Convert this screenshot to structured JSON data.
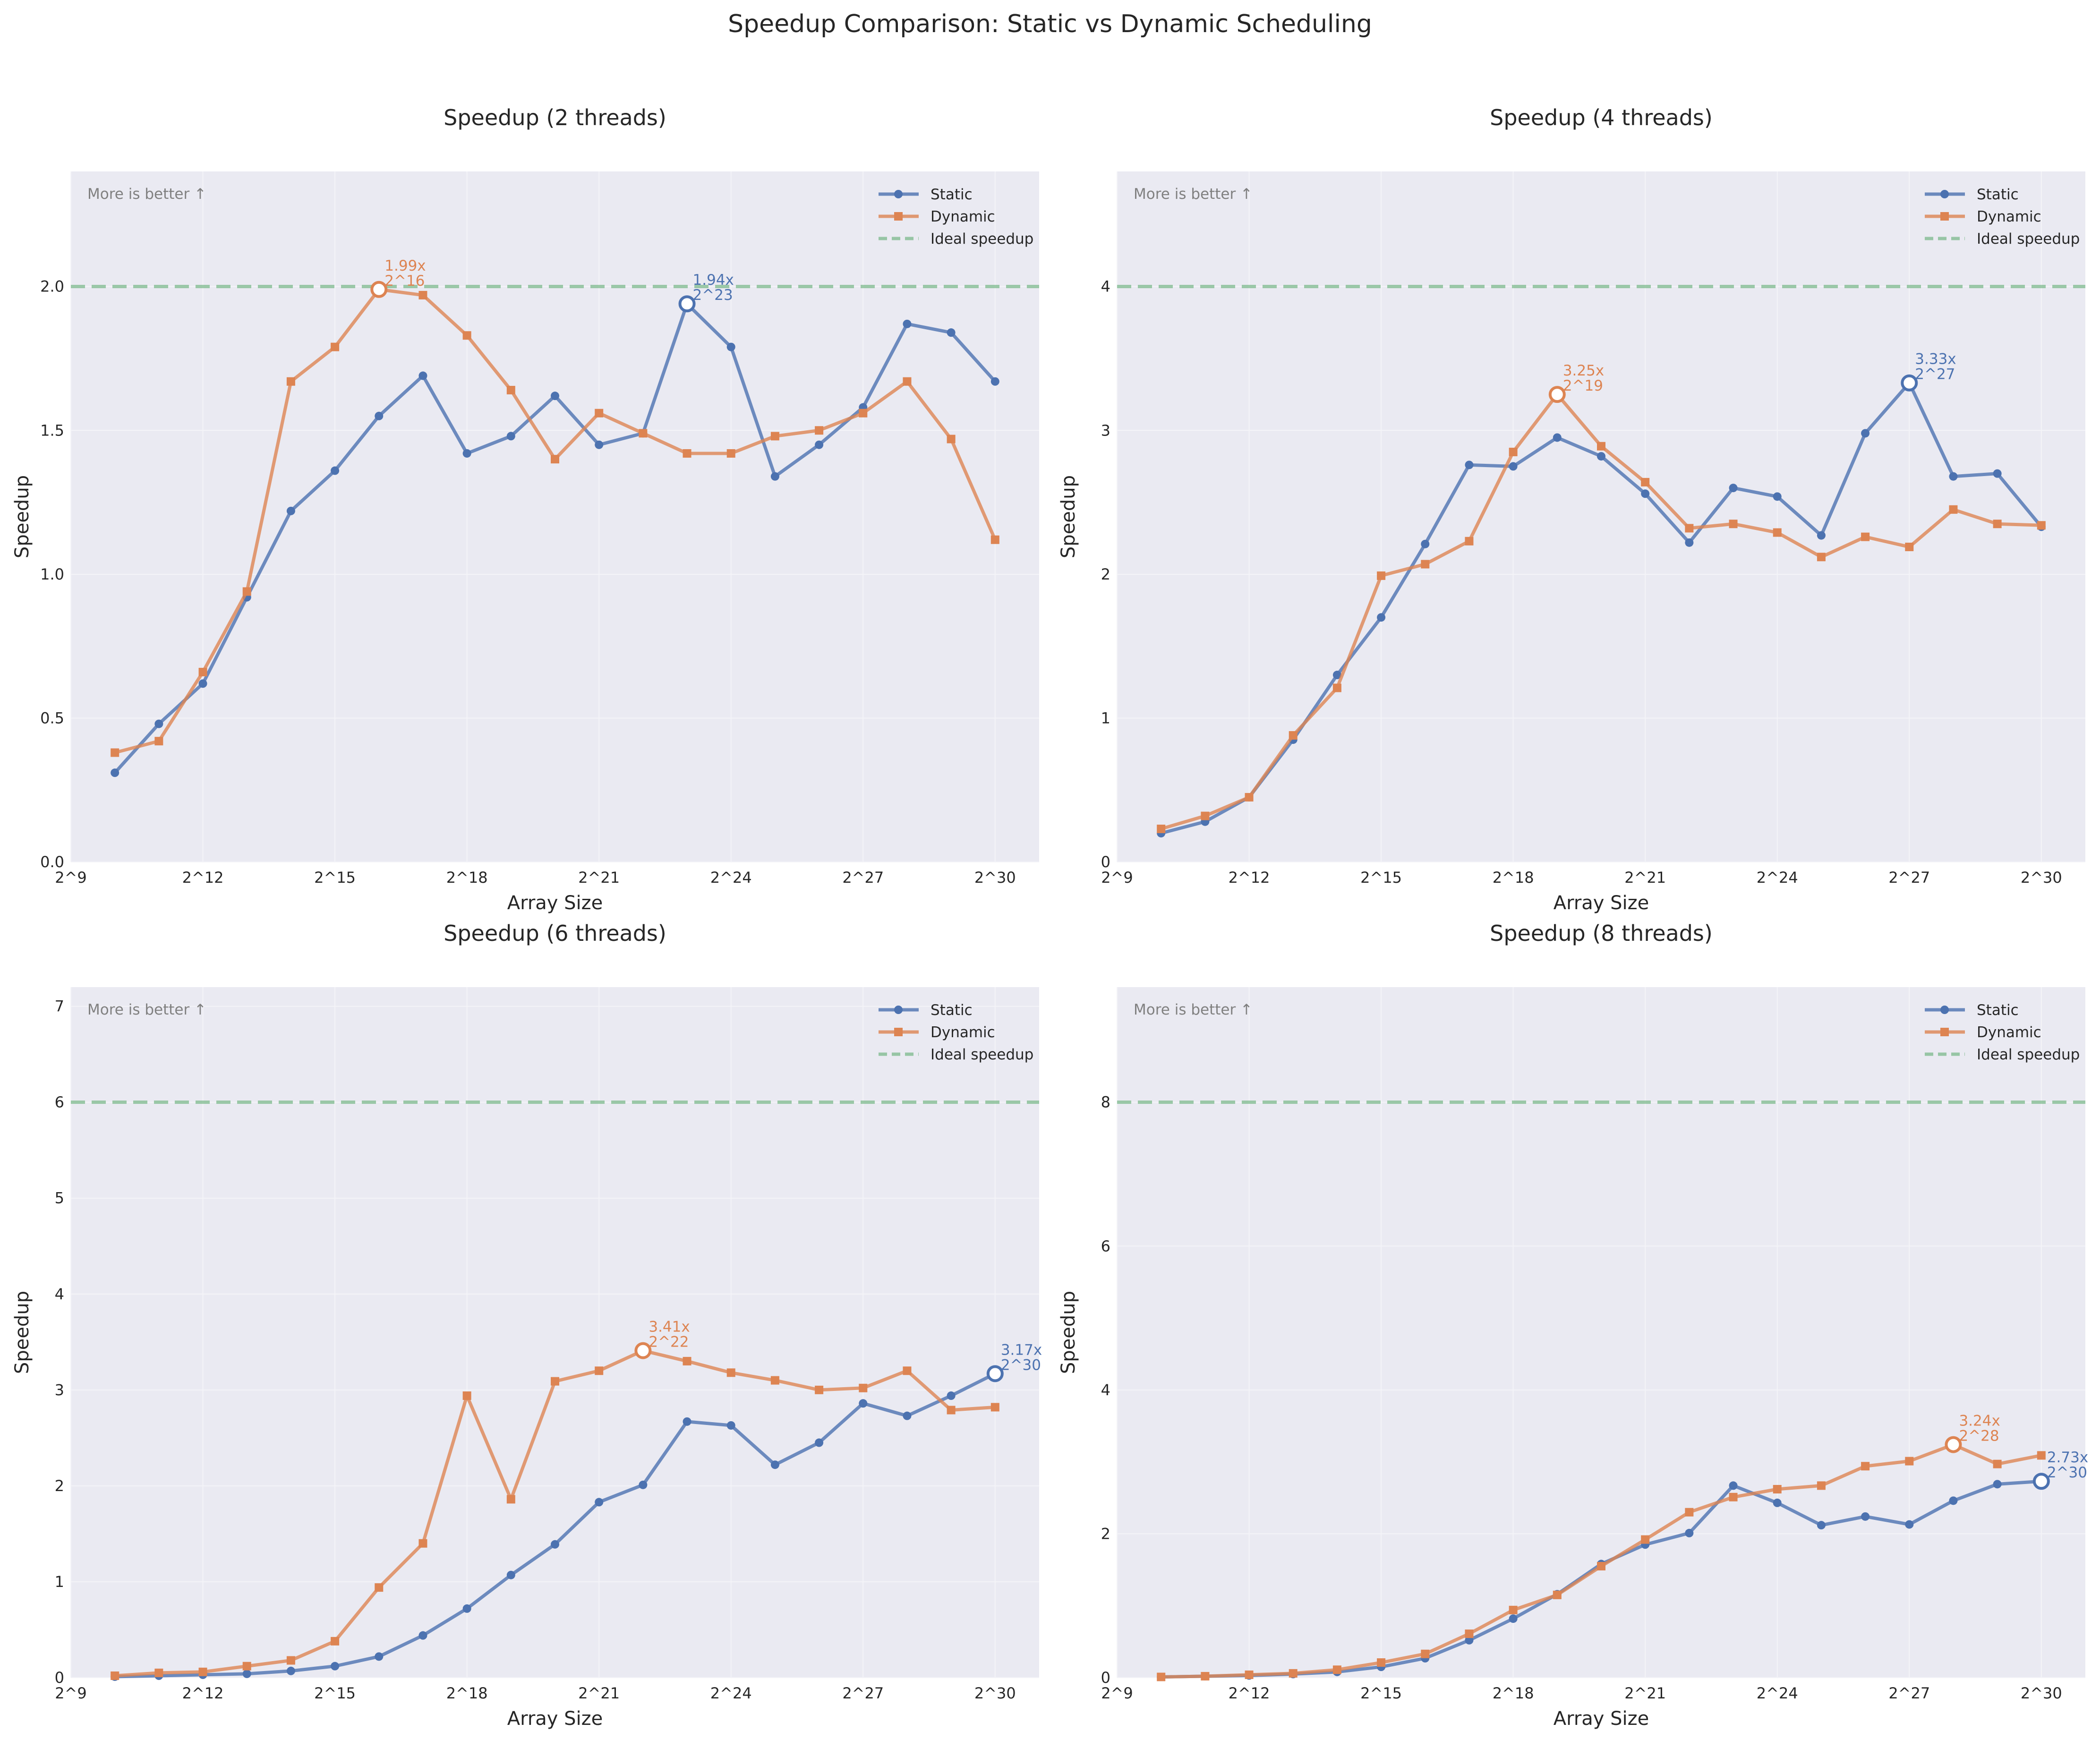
{
  "suptitle": "Speedup Comparison: Static vs Dynamic Scheduling",
  "colors": {
    "static": "#4c72b0",
    "dynamic": "#dd8452",
    "ideal": "#55a868",
    "axes_bg": "#eaeaf2",
    "grid": "#f4f4f8",
    "note": "#808080"
  },
  "chart_data": [
    {
      "type": "line",
      "title": "Speedup (2 threads)",
      "xlabel": "Array Size",
      "ylabel": "Speedup",
      "note": "More is better ↑",
      "legend_position": "top-right",
      "grid": true,
      "xlim": [
        9,
        31
      ],
      "ylim": [
        0,
        2.4
      ],
      "x_ticks": [
        9,
        12,
        15,
        18,
        21,
        24,
        27,
        30
      ],
      "x_tick_labels": [
        "2^9",
        "2^12",
        "2^15",
        "2^18",
        "2^21",
        "2^24",
        "2^27",
        "2^30"
      ],
      "y_ticks": [
        0,
        0.5,
        1,
        1.5,
        2
      ],
      "y_tick_labels": [
        "0.0",
        "0.5",
        "1.0",
        "1.5",
        "2.0"
      ],
      "x": [
        10,
        11,
        12,
        13,
        14,
        15,
        16,
        17,
        18,
        19,
        20,
        21,
        22,
        23,
        24,
        25,
        26,
        27,
        28,
        29,
        30
      ],
      "series": [
        {
          "name": "Static",
          "marker": "circle",
          "values": [
            0.31,
            0.48,
            0.62,
            0.92,
            1.22,
            1.36,
            1.55,
            1.69,
            1.42,
            1.48,
            1.62,
            1.45,
            1.49,
            1.94,
            1.79,
            1.34,
            1.45,
            1.58,
            1.87,
            1.84,
            1.67
          ]
        },
        {
          "name": "Dynamic",
          "marker": "square",
          "values": [
            0.38,
            0.42,
            0.66,
            0.94,
            1.67,
            1.79,
            1.99,
            1.97,
            1.83,
            1.64,
            1.4,
            1.56,
            1.49,
            1.42,
            1.42,
            1.48,
            1.5,
            1.56,
            1.67,
            1.47,
            1.12
          ]
        }
      ],
      "ideal": {
        "name": "Ideal speedup",
        "value": 2
      },
      "annotations": [
        {
          "series": "Dynamic",
          "x": 16,
          "y": 1.99,
          "line1": "1.99x",
          "line2": "2^16"
        },
        {
          "series": "Static",
          "x": 23,
          "y": 1.94,
          "line1": "1.94x",
          "line2": "2^23"
        }
      ]
    },
    {
      "type": "line",
      "title": "Speedup (4 threads)",
      "xlabel": "Array Size",
      "ylabel": "Speedup",
      "note": "More is better ↑",
      "legend_position": "top-right",
      "grid": true,
      "xlim": [
        9,
        31
      ],
      "ylim": [
        0,
        4.8
      ],
      "x_ticks": [
        9,
        12,
        15,
        18,
        21,
        24,
        27,
        30
      ],
      "x_tick_labels": [
        "2^9",
        "2^12",
        "2^15",
        "2^18",
        "2^21",
        "2^24",
        "2^27",
        "2^30"
      ],
      "y_ticks": [
        0,
        1,
        2,
        3,
        4
      ],
      "y_tick_labels": [
        "0",
        "1",
        "2",
        "3",
        "4"
      ],
      "x": [
        10,
        11,
        12,
        13,
        14,
        15,
        16,
        17,
        18,
        19,
        20,
        21,
        22,
        23,
        24,
        25,
        26,
        27,
        28,
        29,
        30
      ],
      "series": [
        {
          "name": "Static",
          "marker": "circle",
          "values": [
            0.2,
            0.28,
            0.45,
            0.85,
            1.3,
            1.7,
            2.21,
            2.76,
            2.75,
            2.95,
            2.82,
            2.56,
            2.22,
            2.6,
            2.54,
            2.27,
            2.98,
            3.33,
            2.68,
            2.7,
            2.33
          ]
        },
        {
          "name": "Dynamic",
          "marker": "square",
          "values": [
            0.23,
            0.32,
            0.45,
            0.88,
            1.21,
            1.99,
            2.07,
            2.23,
            2.85,
            3.25,
            2.89,
            2.64,
            2.32,
            2.35,
            2.29,
            2.12,
            2.26,
            2.19,
            2.45,
            2.35,
            2.34
          ]
        }
      ],
      "ideal": {
        "name": "Ideal speedup",
        "value": 4
      },
      "annotations": [
        {
          "series": "Dynamic",
          "x": 19,
          "y": 3.25,
          "line1": "3.25x",
          "line2": "2^19"
        },
        {
          "series": "Static",
          "x": 27,
          "y": 3.33,
          "line1": "3.33x",
          "line2": "2^27"
        }
      ]
    },
    {
      "type": "line",
      "title": "Speedup (6 threads)",
      "xlabel": "Array Size",
      "ylabel": "Speedup",
      "note": "More is better ↑",
      "legend_position": "top-right",
      "grid": true,
      "xlim": [
        9,
        31
      ],
      "ylim": [
        0,
        7.2
      ],
      "x_ticks": [
        9,
        12,
        15,
        18,
        21,
        24,
        27,
        30
      ],
      "x_tick_labels": [
        "2^9",
        "2^12",
        "2^15",
        "2^18",
        "2^21",
        "2^24",
        "2^27",
        "2^30"
      ],
      "y_ticks": [
        0,
        1,
        2,
        3,
        4,
        5,
        6,
        7
      ],
      "y_tick_labels": [
        "0",
        "1",
        "2",
        "3",
        "4",
        "5",
        "6",
        "7"
      ],
      "x": [
        10,
        11,
        12,
        13,
        14,
        15,
        16,
        17,
        18,
        19,
        20,
        21,
        22,
        23,
        24,
        25,
        26,
        27,
        28,
        29,
        30
      ],
      "series": [
        {
          "name": "Static",
          "marker": "circle",
          "values": [
            0.01,
            0.02,
            0.03,
            0.04,
            0.07,
            0.12,
            0.22,
            0.44,
            0.72,
            1.07,
            1.39,
            1.83,
            2.01,
            2.67,
            2.63,
            2.22,
            2.45,
            2.86,
            2.73,
            2.94,
            3.17
          ]
        },
        {
          "name": "Dynamic",
          "marker": "square",
          "values": [
            0.02,
            0.05,
            0.06,
            0.12,
            0.18,
            0.38,
            0.94,
            1.4,
            2.94,
            1.86,
            3.09,
            3.2,
            3.41,
            3.3,
            3.18,
            3.1,
            3.0,
            3.02,
            3.2,
            2.79,
            2.82
          ]
        }
      ],
      "ideal": {
        "name": "Ideal speedup",
        "value": 6
      },
      "annotations": [
        {
          "series": "Dynamic",
          "x": 22,
          "y": 3.41,
          "line1": "3.41x",
          "line2": "2^22"
        },
        {
          "series": "Static",
          "x": 30,
          "y": 3.17,
          "line1": "3.17x",
          "line2": "2^30"
        }
      ]
    },
    {
      "type": "line",
      "title": "Speedup (8 threads)",
      "xlabel": "Array Size",
      "ylabel": "Speedup",
      "note": "More is better ↑",
      "legend_position": "top-right",
      "grid": true,
      "xlim": [
        9,
        31
      ],
      "ylim": [
        0,
        9.6
      ],
      "x_ticks": [
        9,
        12,
        15,
        18,
        21,
        24,
        27,
        30
      ],
      "x_tick_labels": [
        "2^9",
        "2^12",
        "2^15",
        "2^18",
        "2^21",
        "2^24",
        "2^27",
        "2^30"
      ],
      "y_ticks": [
        0,
        2,
        4,
        6,
        8
      ],
      "y_tick_labels": [
        "0",
        "2",
        "4",
        "6",
        "8"
      ],
      "x": [
        10,
        11,
        12,
        13,
        14,
        15,
        16,
        17,
        18,
        19,
        20,
        21,
        22,
        23,
        24,
        25,
        26,
        27,
        28,
        29,
        30
      ],
      "series": [
        {
          "name": "Static",
          "marker": "circle",
          "values": [
            0.01,
            0.02,
            0.03,
            0.05,
            0.08,
            0.15,
            0.27,
            0.52,
            0.82,
            1.16,
            1.58,
            1.85,
            2.01,
            2.67,
            2.43,
            2.12,
            2.24,
            2.13,
            2.46,
            2.69,
            2.73
          ]
        },
        {
          "name": "Dynamic",
          "marker": "square",
          "values": [
            0.01,
            0.02,
            0.04,
            0.06,
            0.11,
            0.21,
            0.33,
            0.61,
            0.94,
            1.15,
            1.55,
            1.92,
            2.3,
            2.51,
            2.62,
            2.67,
            2.94,
            3.01,
            3.24,
            2.97,
            3.09
          ]
        }
      ],
      "ideal": {
        "name": "Ideal speedup",
        "value": 8
      },
      "annotations": [
        {
          "series": "Dynamic",
          "x": 28,
          "y": 3.24,
          "line1": "3.24x",
          "line2": "2^28"
        },
        {
          "series": "Static",
          "x": 30,
          "y": 2.73,
          "line1": "2.73x",
          "line2": "2^30"
        }
      ]
    }
  ]
}
